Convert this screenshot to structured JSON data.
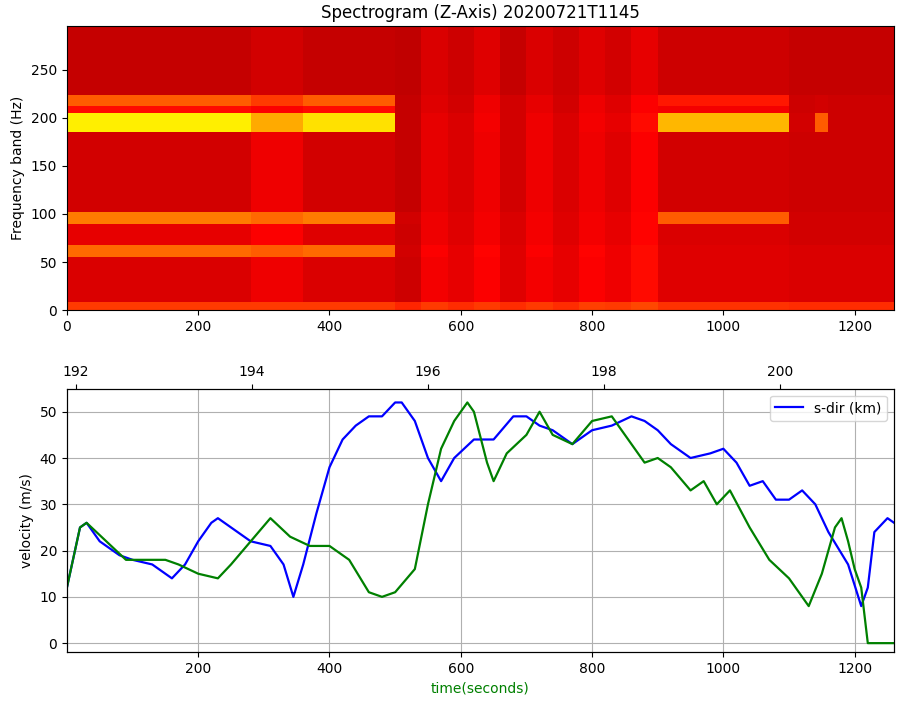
{
  "chart_data": [
    {
      "type": "heatmap",
      "title": "Spectrogram (Z-Axis) 20200721T1145",
      "y_label": "Frequency band (Hz)",
      "xlim": [
        0,
        1260
      ],
      "ylim": [
        0,
        295
      ],
      "xticks": [
        0,
        200,
        400,
        600,
        800,
        1000,
        1200
      ],
      "yticks": [
        0,
        50,
        100,
        150,
        200,
        250
      ],
      "time_edges": [
        0,
        280,
        360,
        500,
        540,
        580,
        620,
        660,
        700,
        740,
        780,
        820,
        860,
        900,
        1100,
        1140,
        1160,
        1260
      ],
      "freq_edges": [
        0,
        8,
        55,
        68,
        90,
        102,
        185,
        205,
        212,
        224,
        295
      ],
      "clim": [
        0,
        1
      ],
      "cells": [
        [
          0.45,
          0.45,
          0.45,
          0.42,
          0.45,
          0.43,
          0.45,
          0.43,
          0.45,
          0.43,
          0.46,
          0.45,
          0.47,
          0.44,
          0.43,
          0.43,
          0.43
        ],
        [
          0.31,
          0.34,
          0.31,
          0.29,
          0.35,
          0.33,
          0.36,
          0.32,
          0.35,
          0.33,
          0.36,
          0.34,
          0.38,
          0.32,
          0.31,
          0.31,
          0.31
        ],
        [
          0.52,
          0.5,
          0.52,
          0.3,
          0.36,
          0.33,
          0.37,
          0.32,
          0.36,
          0.33,
          0.37,
          0.34,
          0.38,
          0.32,
          0.31,
          0.31,
          0.31
        ],
        [
          0.33,
          0.36,
          0.32,
          0.29,
          0.34,
          0.32,
          0.35,
          0.31,
          0.35,
          0.32,
          0.35,
          0.33,
          0.37,
          0.31,
          0.3,
          0.3,
          0.3
        ],
        [
          0.55,
          0.52,
          0.55,
          0.3,
          0.34,
          0.32,
          0.35,
          0.31,
          0.35,
          0.32,
          0.35,
          0.33,
          0.37,
          0.5,
          0.3,
          0.3,
          0.3
        ],
        [
          0.3,
          0.34,
          0.3,
          0.28,
          0.33,
          0.31,
          0.34,
          0.3,
          0.34,
          0.31,
          0.34,
          0.32,
          0.36,
          0.3,
          0.29,
          0.29,
          0.29
        ],
        [
          0.72,
          0.62,
          0.7,
          0.28,
          0.33,
          0.31,
          0.35,
          0.3,
          0.34,
          0.31,
          0.35,
          0.33,
          0.38,
          0.64,
          0.3,
          0.5,
          0.29
        ],
        [
          0.38,
          0.36,
          0.38,
          0.28,
          0.32,
          0.3,
          0.34,
          0.3,
          0.33,
          0.3,
          0.34,
          0.32,
          0.36,
          0.35,
          0.29,
          0.3,
          0.29
        ],
        [
          0.5,
          0.45,
          0.5,
          0.28,
          0.32,
          0.3,
          0.34,
          0.3,
          0.33,
          0.3,
          0.34,
          0.32,
          0.36,
          0.4,
          0.29,
          0.3,
          0.29
        ],
        [
          0.28,
          0.3,
          0.28,
          0.27,
          0.31,
          0.29,
          0.32,
          0.28,
          0.31,
          0.29,
          0.32,
          0.3,
          0.33,
          0.29,
          0.28,
          0.28,
          0.28
        ]
      ]
    },
    {
      "type": "line",
      "x_label": "time(seconds)",
      "y_label": "velocity (m/s)",
      "xlim": [
        0,
        1260
      ],
      "ylim": [
        -2,
        55
      ],
      "xticks": [
        200,
        400,
        600,
        800,
        1000,
        1200
      ],
      "yticks": [
        0,
        10,
        20,
        30,
        40,
        50
      ],
      "x2lim": [
        191.9,
        201.3
      ],
      "x2ticks": [
        192,
        194,
        196,
        198,
        200
      ],
      "grid": true,
      "legend": "upper right",
      "series": [
        {
          "name": "s-dir (km)",
          "color": "#0000ff",
          "x": [
            0,
            20,
            30,
            50,
            80,
            100,
            130,
            150,
            160,
            180,
            200,
            220,
            230,
            250,
            280,
            310,
            330,
            345,
            360,
            380,
            400,
            420,
            440,
            460,
            480,
            500,
            510,
            530,
            550,
            570,
            590,
            620,
            650,
            680,
            700,
            720,
            740,
            770,
            800,
            830,
            860,
            880,
            900,
            920,
            950,
            980,
            1000,
            1020,
            1040,
            1060,
            1080,
            1100,
            1120,
            1140,
            1160,
            1190,
            1210,
            1220,
            1230,
            1250,
            1260
          ],
          "values": [
            12,
            25,
            26,
            22,
            19,
            18,
            17,
            15,
            14,
            17,
            22,
            26,
            27,
            25,
            22,
            21,
            17,
            10,
            17,
            28,
            38,
            44,
            47,
            49,
            49,
            52,
            52,
            48,
            40,
            35,
            40,
            44,
            44,
            49,
            49,
            47,
            46,
            43,
            46,
            47,
            49,
            48,
            46,
            43,
            40,
            41,
            42,
            39,
            34,
            35,
            31,
            31,
            33,
            30,
            24,
            17,
            8,
            12,
            24,
            27,
            26
          ]
        },
        {
          "color": "#008000",
          "x": [
            0,
            20,
            30,
            60,
            90,
            130,
            150,
            170,
            200,
            230,
            250,
            280,
            310,
            340,
            370,
            400,
            430,
            460,
            480,
            500,
            530,
            550,
            570,
            590,
            600,
            610,
            620,
            640,
            650,
            670,
            700,
            720,
            740,
            770,
            800,
            830,
            850,
            880,
            900,
            920,
            950,
            970,
            990,
            1010,
            1040,
            1070,
            1100,
            1120,
            1130,
            1150,
            1170,
            1180,
            1190,
            1200,
            1210,
            1220,
            1260
          ],
          "values": [
            12,
            25,
            26,
            22,
            18,
            18,
            18,
            17,
            15,
            14,
            17,
            22,
            27,
            23,
            21,
            21,
            18,
            11,
            10,
            11,
            16,
            30,
            42,
            48,
            50,
            52,
            50,
            39,
            35,
            41,
            45,
            50,
            45,
            43,
            48,
            49,
            45,
            39,
            40,
            38,
            33,
            35,
            30,
            33,
            25,
            18,
            14,
            10,
            8,
            15,
            25,
            27,
            22,
            16,
            12,
            0,
            0
          ]
        }
      ]
    }
  ]
}
